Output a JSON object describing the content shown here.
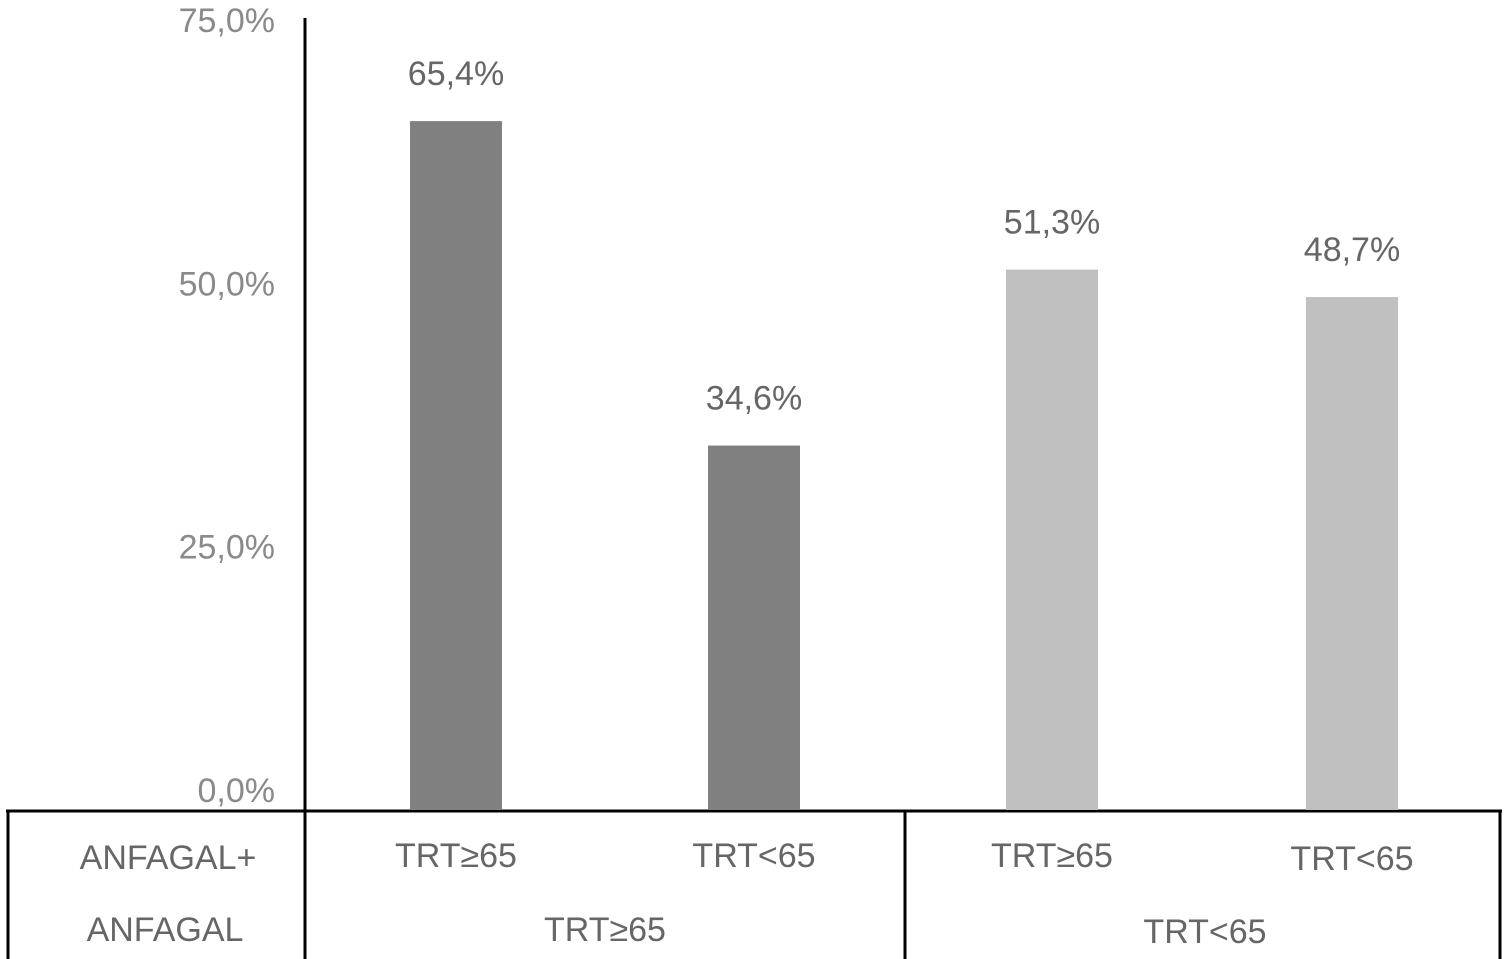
{
  "chart_data": {
    "type": "bar",
    "categories": [
      "TRT≥65",
      "TRT<65",
      "TRT≥65",
      "TRT<65"
    ],
    "values": [
      65.4,
      34.6,
      51.3,
      48.7
    ],
    "value_labels": [
      "65,4%",
      "34,6%",
      "51,3%",
      "48,7%"
    ],
    "colors": [
      "#808080",
      "#808080",
      "#c0c0c0",
      "#c0c0c0"
    ],
    "group_labels": [
      "TRT≥65",
      "TRT<65"
    ],
    "row_labels": [
      "ANFAGAL+",
      "ANFAGAL"
    ],
    "ylim": [
      0,
      75
    ],
    "yticks": [
      {
        "value": 0,
        "label": "0,0%"
      },
      {
        "value": 25,
        "label": "25,0%"
      },
      {
        "value": 50,
        "label": "50,0%"
      },
      {
        "value": 75,
        "label": "75,0%"
      }
    ]
  }
}
